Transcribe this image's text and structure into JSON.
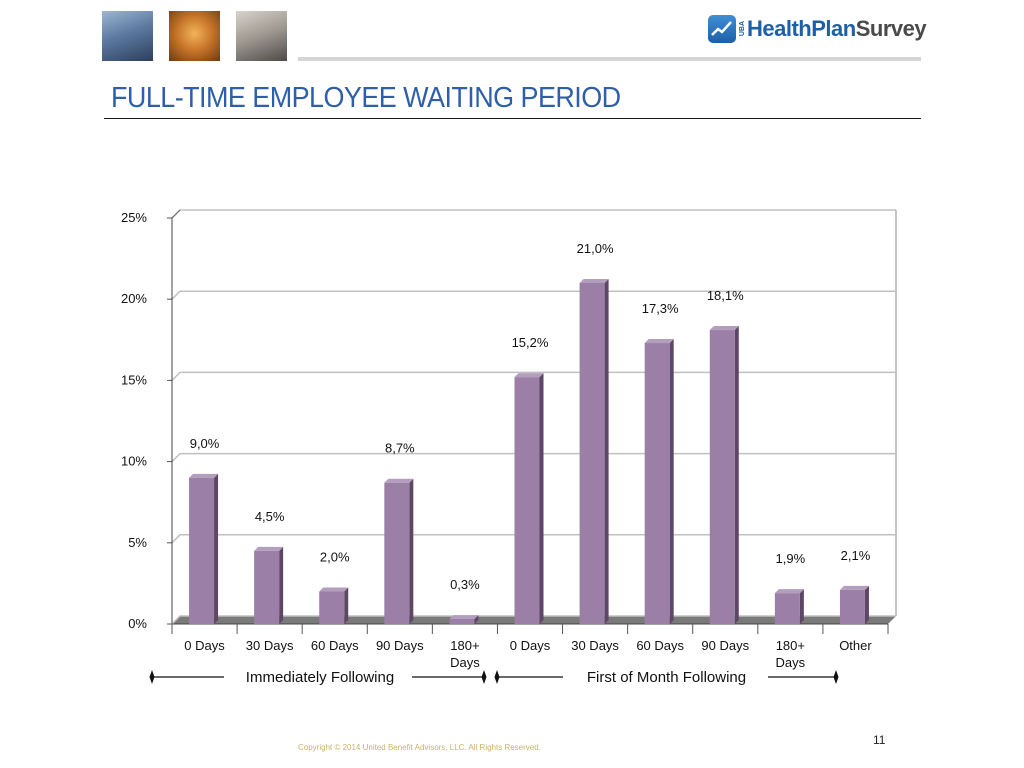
{
  "header": {
    "logo_prefix": "UBA",
    "logo_part1": "HealthPlan",
    "logo_part2": "Survey"
  },
  "title": "FULL-TIME EMPLOYEE WAITING PERIOD",
  "colors": {
    "bar": "#9c7fa6",
    "title": "#2e5fa8",
    "grid": "#c0c0c0"
  },
  "chart_data": {
    "type": "bar",
    "categories": [
      "0 Days",
      "30 Days",
      "60 Days",
      "90 Days",
      "180+ Days",
      "0 Days",
      "30 Days",
      "60 Days",
      "90 Days",
      "180+ Days",
      "Other"
    ],
    "values": [
      9.0,
      4.5,
      2.0,
      8.7,
      0.3,
      15.2,
      21.0,
      17.3,
      18.1,
      1.9,
      2.1
    ],
    "data_labels": [
      "9,0%",
      "4,5%",
      "2,0%",
      "8,7%",
      "0,3%",
      "15,2%",
      "21,0%",
      "17,3%",
      "18,1%",
      "1,9%",
      "2,1%"
    ],
    "y_ticks": [
      "0%",
      "5%",
      "10%",
      "15%",
      "20%",
      "25%"
    ],
    "ylim": [
      0,
      25
    ],
    "grid": true,
    "groups": [
      {
        "label": "Immediately Following",
        "categories": 5
      },
      {
        "label": "First of Month Following",
        "categories": 5
      }
    ]
  },
  "footer": {
    "copyright": "Copyright © 2014 United Benefit Advisors, LLC. All Rights Reserved.",
    "page_number": "11"
  }
}
